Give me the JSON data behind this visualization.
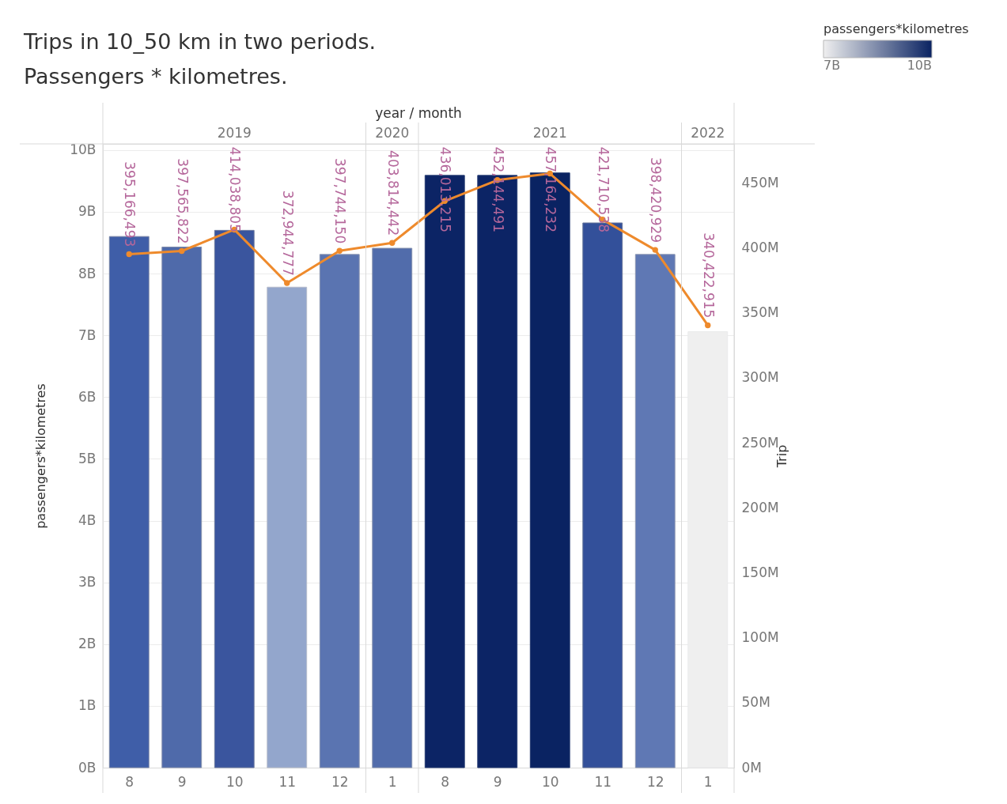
{
  "chart_data": {
    "type": "bar",
    "title": "Trips in 10_50 km in two periods.",
    "subtitle": "Passengers * kilometres.",
    "xlabel": "year / month",
    "ylabel": "passengers*kilometres",
    "y2label": "Trip",
    "clabel": "passengers*kilometres",
    "categories": [
      "8",
      "9",
      "10",
      "11",
      "12",
      "1",
      "8",
      "9",
      "10",
      "11",
      "12",
      "1"
    ],
    "series": [
      {
        "values": [
          8600000000,
          8430000000,
          8700000000,
          7780000000,
          8310000000,
          8410000000,
          9590000000,
          9590000000,
          9630000000,
          8820000000,
          8310000000,
          7060000000
        ],
        "colors": [
          "#3f5ea8",
          "#4f6aaa",
          "#3a559e",
          "#93a6cc",
          "#5a74b1",
          "#516cab",
          "#0c2465",
          "#0c2465",
          "#0a2362",
          "#33509a",
          "#5f78b4",
          "#efefef"
        ]
      },
      {
        "type": "line",
        "axis": "y2",
        "color": "#ee8a2c",
        "values": [
          395166493,
          397565822,
          414038805,
          372944777,
          397744150,
          403814442,
          436013215,
          452144491,
          457164232,
          421710538,
          398420929,
          340422915
        ],
        "value_labels": [
          "395,166,493",
          "397,565,822",
          "414,038,805",
          "372,944,777",
          "397,744,150",
          "403,814,442",
          "436,013,215",
          "452,144,491",
          "457,164,232",
          "421,710,538",
          "398,420,929",
          "340,422,915"
        ]
      }
    ],
    "ylim": [
      0,
      10100000000
    ],
    "yticks": [
      {
        "value": 0,
        "label": "0B"
      },
      {
        "value": 1000000000,
        "label": "1B"
      },
      {
        "value": 2000000000,
        "label": "2B"
      },
      {
        "value": 3000000000,
        "label": "3B"
      },
      {
        "value": 4000000000,
        "label": "4B"
      },
      {
        "value": 5000000000,
        "label": "5B"
      },
      {
        "value": 6000000000,
        "label": "6B"
      },
      {
        "value": 7000000000,
        "label": "7B"
      },
      {
        "value": 8000000000,
        "label": "8B"
      },
      {
        "value": 9000000000,
        "label": "9B"
      },
      {
        "value": 10000000000,
        "label": "10B"
      }
    ],
    "y2lim": [
      0,
      480000000
    ],
    "y2ticks": [
      {
        "value": 0,
        "label": "0M"
      },
      {
        "value": 50000000,
        "label": "50M"
      },
      {
        "value": 100000000,
        "label": "100M"
      },
      {
        "value": 150000000,
        "label": "150M"
      },
      {
        "value": 200000000,
        "label": "200M"
      },
      {
        "value": 250000000,
        "label": "250M"
      },
      {
        "value": 300000000,
        "label": "300M"
      },
      {
        "value": 350000000,
        "label": "350M"
      },
      {
        "value": 400000000,
        "label": "400M"
      },
      {
        "value": 450000000,
        "label": "450M"
      }
    ],
    "clim": [
      7000000000,
      10000000000
    ],
    "cticks": [
      {
        "value": 7000000000,
        "label": "7B"
      },
      {
        "value": 10000000000,
        "label": "10B"
      }
    ],
    "annotations": [
      "2019",
      "2020",
      "2021",
      "2022"
    ],
    "grid": "y",
    "marker": "circle"
  }
}
